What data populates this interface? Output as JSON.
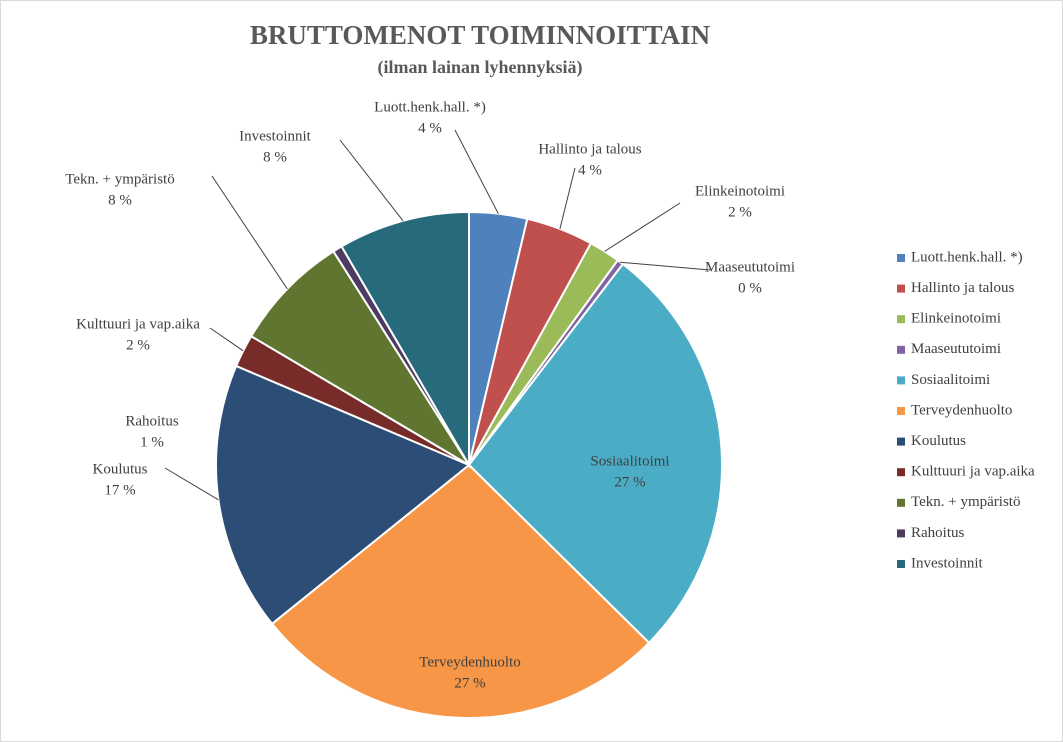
{
  "chart_data": {
    "type": "pie",
    "title": "BRUTTOMENOT TOIMINNOITTAIN",
    "subtitle": "(ilman lainan lyhennyksiä)",
    "categories": [
      "Luott.henk.hall. *)",
      "Hallinto ja talous",
      "Elinkeinotoimi",
      "Maaseututoimi",
      "Sosiaalitoimi",
      "Terveydenhuolto",
      "Koulutus",
      "Kulttuuri ja vap.aika",
      "Tekn. + ympäristö",
      "Rahoitus",
      "Investoinnit"
    ],
    "values": [
      3.7,
      4.3,
      2.0,
      0.4,
      27.0,
      26.8,
      17.2,
      2.1,
      7.5,
      0.6,
      8.4
    ],
    "value_labels": [
      "4 %",
      "4 %",
      "2 %",
      "0 %",
      "27 %",
      "27 %",
      "17 %",
      "2 %",
      "8 %",
      "1 %",
      "8 %"
    ],
    "colors": [
      "#4f81bd",
      "#c0504d",
      "#9bbb59",
      "#8064a2",
      "#4bacc6",
      "#f79646",
      "#2c4d75",
      "#772c2a",
      "#5f7530",
      "#4d3b62",
      "#276a7c"
    ],
    "legend": "right"
  }
}
